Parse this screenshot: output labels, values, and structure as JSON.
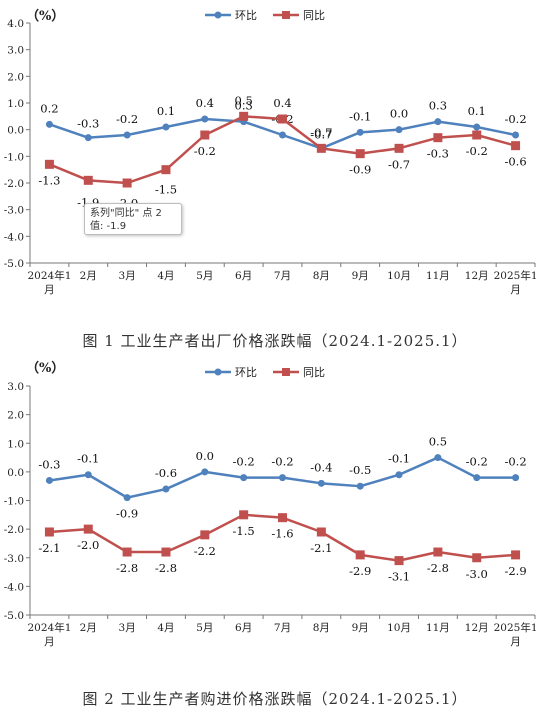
{
  "charts": [
    {
      "unit_label": "（%）",
      "caption": "图 1  工业生产者出厂价格涨跌幅（2024.1-2025.1）",
      "tooltip": {
        "line1": "系列\"同比\" 点 2",
        "line2": "值: -1.9"
      }
    },
    {
      "unit_label": "（%）",
      "caption": "图 2  工业生产者购进价格涨跌幅（2024.1-2025.1）"
    }
  ],
  "chart_data": [
    {
      "type": "line",
      "title": "工业生产者出厂价格涨跌幅（2024.1-2025.1）",
      "ylabel": "（%）",
      "categories": [
        "2024年1月",
        "2月",
        "3月",
        "4月",
        "5月",
        "6月",
        "7月",
        "8月",
        "9月",
        "10月",
        "11月",
        "12月",
        "2025年1月"
      ],
      "ylim": [
        -5.0,
        4.0
      ],
      "yticks": [
        "4.0",
        "3.0",
        "2.0",
        "1.0",
        "0.0",
        "-1.0",
        "-2.0",
        "-3.0",
        "-4.0",
        "-5.0"
      ],
      "legend_position": "top",
      "series": [
        {
          "name": "环比",
          "color": "#4f81bd",
          "values": [
            0.2,
            -0.3,
            -0.2,
            0.1,
            0.4,
            0.3,
            -0.2,
            -0.7,
            -0.1,
            0.0,
            0.3,
            0.1,
            -0.2
          ],
          "labels": [
            "0.2",
            "-0.3",
            "-0.2",
            "0.1",
            "0.4",
            "0.3",
            "-0.2",
            "-0.7",
            "-0.1",
            "0.0",
            "0.3",
            "0.1",
            "-0.2"
          ]
        },
        {
          "name": "同比",
          "color": "#c0504d",
          "values": [
            -1.3,
            -1.9,
            -2.0,
            -1.5,
            -0.2,
            0.5,
            0.4,
            -0.7,
            -0.9,
            -0.7,
            -0.3,
            -0.2,
            -0.6
          ],
          "labels": [
            "-1.3",
            "-1.9",
            "-2.0",
            "-1.5",
            "-0.2",
            "0.5",
            "0.4",
            "-0.7",
            "-0.9",
            "-0.7",
            "-0.3",
            "-0.2",
            "-0.6"
          ]
        }
      ]
    },
    {
      "type": "line",
      "title": "工业生产者购进价格涨跌幅（2024.1-2025.1）",
      "ylabel": "（%）",
      "categories": [
        "2024年1月",
        "2月",
        "3月",
        "4月",
        "5月",
        "6月",
        "7月",
        "8月",
        "9月",
        "10月",
        "11月",
        "12月",
        "2025年1月"
      ],
      "ylim": [
        -5.0,
        3.0
      ],
      "yticks": [
        "3.0",
        "2.0",
        "1.0",
        "0.0",
        "-1.0",
        "-2.0",
        "-3.0",
        "-4.0",
        "-5.0"
      ],
      "legend_position": "top",
      "series": [
        {
          "name": "环比",
          "color": "#4f81bd",
          "values": [
            -0.3,
            -0.1,
            -0.9,
            -0.6,
            0.0,
            -0.2,
            -0.2,
            -0.4,
            -0.5,
            -0.1,
            0.5,
            -0.2,
            -0.2
          ],
          "labels": [
            "-0.3",
            "-0.1",
            "-0.9",
            "-0.6",
            "0.0",
            "-0.2",
            "-0.2",
            "-0.4",
            "-0.5",
            "-0.1",
            "0.5",
            "-0.2",
            "-0.2"
          ]
        },
        {
          "name": "同比",
          "color": "#c0504d",
          "values": [
            -2.1,
            -2.0,
            -2.8,
            -2.8,
            -2.2,
            -1.5,
            -1.6,
            -2.1,
            -2.9,
            -3.1,
            -2.8,
            -3.0,
            -2.9
          ],
          "labels": [
            "-2.1",
            "-2.0",
            "-2.8",
            "-2.8",
            "-2.2",
            "-1.5",
            "-1.6",
            "-2.1",
            "-2.9",
            "-3.1",
            "-2.8",
            "-3.0",
            "-2.9"
          ]
        }
      ]
    }
  ]
}
